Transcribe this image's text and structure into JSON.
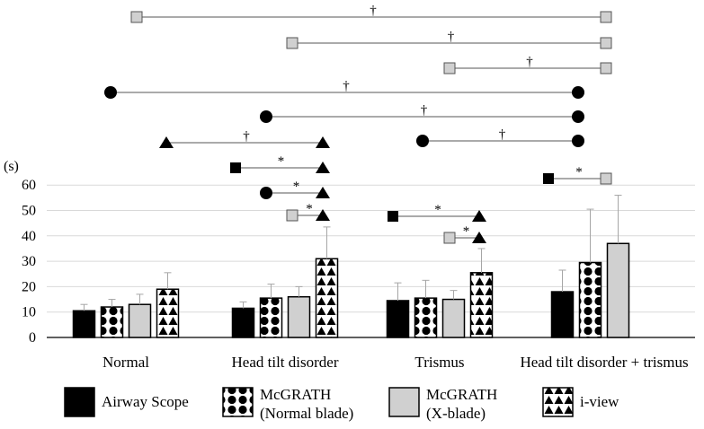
{
  "chart_data": {
    "type": "bar",
    "ylabel": "(s)",
    "ylim": [
      0,
      60
    ],
    "yticks": [
      0,
      10,
      20,
      30,
      40,
      50,
      60
    ],
    "grid": true,
    "legend_position": "bottom",
    "categories": [
      "Normal",
      "Head tilt disorder",
      "Trismus",
      "Head tilt disorder + trismus"
    ],
    "series": [
      {
        "name": "Airway Scope",
        "pattern": "solid-black",
        "color": "#000000",
        "values": [
          10.5,
          11.5,
          14.5,
          18
        ],
        "errors": [
          2.5,
          2.5,
          7,
          8.5
        ]
      },
      {
        "name": "McGRATH\n(Normal blade)",
        "pattern": "circles",
        "color": "#000000",
        "values": [
          12,
          15.5,
          15.5,
          29.5
        ],
        "errors": [
          3,
          5.5,
          7,
          21
        ]
      },
      {
        "name": "McGRATH\n(X-blade)",
        "pattern": "solid-gray",
        "color": "#d0d0d0",
        "values": [
          13,
          16,
          15,
          37
        ],
        "errors": [
          4,
          4,
          3.5,
          19
        ]
      },
      {
        "name": "i-view",
        "pattern": "triangles",
        "color": "#000000",
        "values": [
          19,
          31,
          25.5,
          null
        ],
        "errors": [
          6.5,
          12.5,
          9.5,
          null
        ]
      }
    ],
    "annotations": [
      {
        "from": "McGRATH (X-blade)",
        "to": "McGRATH (X-blade)",
        "mark": "†",
        "cat_from": 0,
        "cat_to": 3
      },
      {
        "from": "McGRATH (X-blade)",
        "to": "McGRATH (X-blade)",
        "mark": "†",
        "cat_from": 1,
        "cat_to": 3
      },
      {
        "from": "McGRATH (X-blade)",
        "to": "McGRATH (X-blade)",
        "mark": "†",
        "cat_from": 2,
        "cat_to": 3
      },
      {
        "from": "McGRATH (Normal blade)",
        "to": "McGRATH (Normal blade)",
        "mark": "†",
        "cat_from": 0,
        "cat_to": 3
      },
      {
        "from": "McGRATH (Normal blade)",
        "to": "McGRATH (Normal blade)",
        "mark": "†",
        "cat_from": 1,
        "cat_to": 3
      },
      {
        "from": "McGRATH (Normal blade)",
        "to": "McGRATH (Normal blade)",
        "mark": "†",
        "cat_from": 2,
        "cat_to": 3
      },
      {
        "from": "i-view",
        "to": "i-view",
        "mark": "†",
        "cat_from": 0,
        "cat_to": 1
      },
      {
        "from": "Airway Scope",
        "to": "i-view",
        "mark": "*",
        "cat": 1
      },
      {
        "from": "McGRATH (Normal blade)",
        "to": "i-view",
        "mark": "*",
        "cat": 1
      },
      {
        "from": "McGRATH (X-blade)",
        "to": "i-view",
        "mark": "*",
        "cat": 1
      },
      {
        "from": "Airway Scope",
        "to": "i-view",
        "mark": "*",
        "cat": 2
      },
      {
        "from": "McGRATH (X-blade)",
        "to": "i-view",
        "mark": "*",
        "cat": 2
      },
      {
        "from": "Airway Scope",
        "to": "McGRATH (X-blade)",
        "mark": "*",
        "cat": 3
      }
    ]
  }
}
